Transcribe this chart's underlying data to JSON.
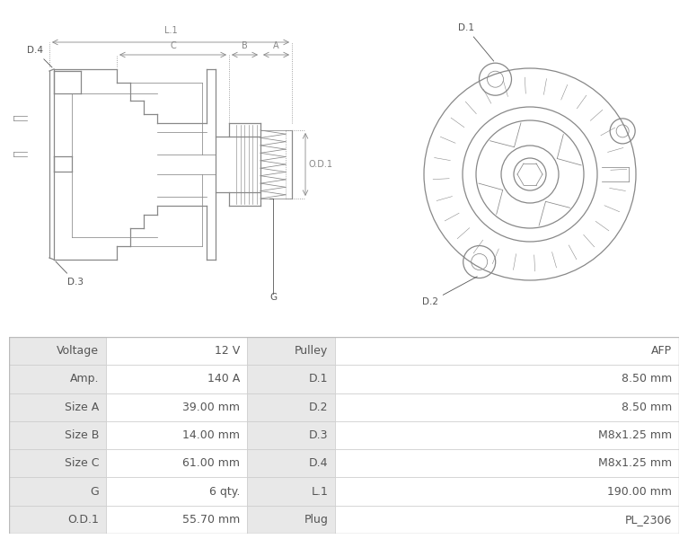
{
  "table_rows": [
    [
      "Voltage",
      "12 V",
      "Pulley",
      "AFP"
    ],
    [
      "Amp.",
      "140 A",
      "D.1",
      "8.50 mm"
    ],
    [
      "Size A",
      "39.00 mm",
      "D.2",
      "8.50 mm"
    ],
    [
      "Size B",
      "14.00 mm",
      "D.3",
      "M8x1.25 mm"
    ],
    [
      "Size C",
      "61.00 mm",
      "D.4",
      "M8x1.25 mm"
    ],
    [
      "G",
      "6 qty.",
      "L.1",
      "190.00 mm"
    ],
    [
      "O.D.1",
      "55.70 mm",
      "Plug",
      "PL_2306"
    ]
  ],
  "col_label_bg": "#e8e8e8",
  "col_value_bg": "#ffffff",
  "border_color": "#cccccc",
  "text_color": "#555555",
  "bg_color": "#ffffff",
  "font_size": 9,
  "line_color": "#999999",
  "line_color_dark": "#666666"
}
